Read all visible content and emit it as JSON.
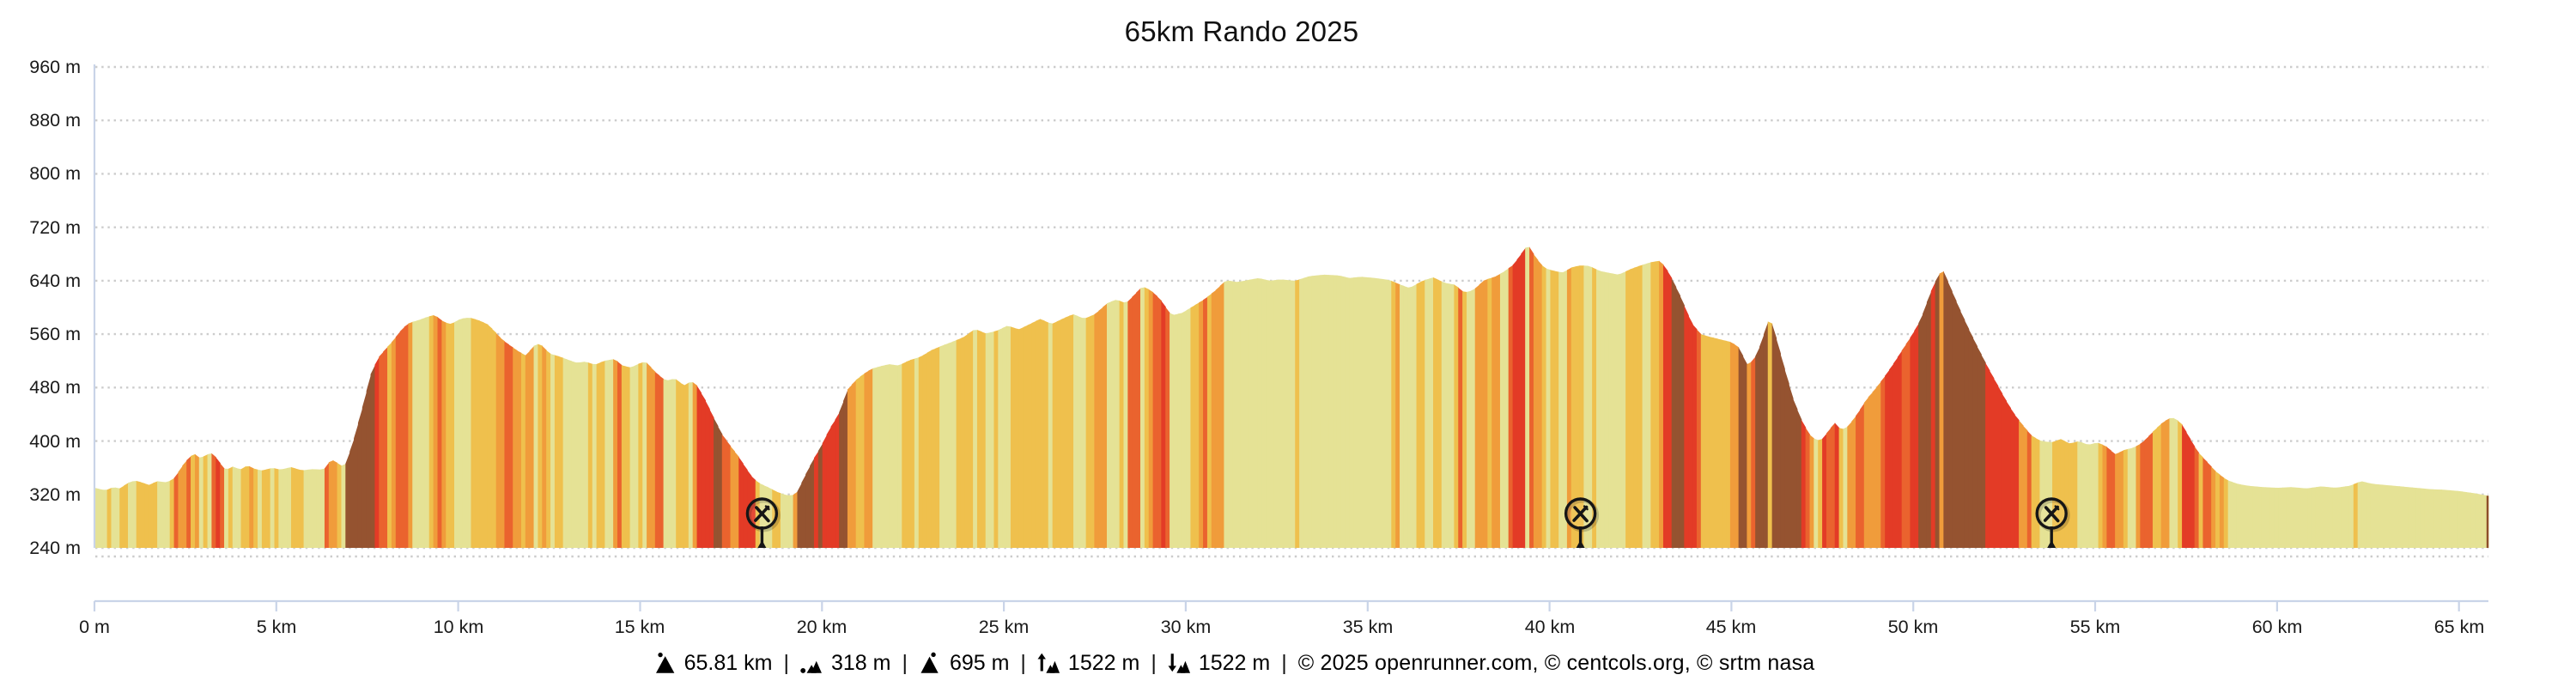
{
  "title": "65km Rando 2025",
  "colors": {
    "background": "#ffffff",
    "axis_line": "#c9d4e8",
    "grid_dots": "#cccccc",
    "label_text": "#1a1a1a",
    "title_text": "#111111",
    "marker_ink": "#161616",
    "profile_end_cap": "#8e4e2b",
    "slope_scale": [
      "#e5e295",
      "#efc04d",
      "#f09c3b",
      "#ea632e",
      "#e33b26",
      "#955330"
    ]
  },
  "chart_data": {
    "type": "area",
    "title": "65km Rando 2025",
    "xlabel": "distance",
    "ylabel": "elevation",
    "x_unit": "km",
    "y_unit": "m",
    "x_range_km": [
      0,
      65.81
    ],
    "ylim_m": [
      240,
      960
    ],
    "grid": "dotted horizontal",
    "legend_position": "none",
    "yticks_m": [
      960,
      880,
      800,
      720,
      640,
      560,
      480,
      400,
      320,
      240
    ],
    "ytick_labels": [
      "960 m",
      "880 m",
      "800 m",
      "720 m",
      "640 m",
      "560 m",
      "480 m",
      "400 m",
      "320 m",
      "240 m"
    ],
    "xticks_km": [
      0,
      5,
      10,
      15,
      20,
      25,
      30,
      35,
      40,
      45,
      50,
      55,
      60,
      65
    ],
    "xtick_labels": [
      "0 m",
      "5 km",
      "10 km",
      "15 km",
      "20 km",
      "25 km",
      "30 km",
      "35 km",
      "40 km",
      "45 km",
      "50 km",
      "55 km",
      "60 km",
      "65 km"
    ],
    "slope_color_encoding": {
      "thresholds_pct": [
        2,
        4,
        6,
        8,
        10.5
      ],
      "classes": [
        "0-2% pale",
        "2-4% gold",
        "4-6% orange",
        "6-8% red-orange",
        "8-10.5% red",
        ">10.5% brown"
      ]
    },
    "markers": [
      {
        "km": 18.35,
        "type": "refreshment",
        "icon": "fork-knife-icon"
      },
      {
        "km": 40.85,
        "type": "refreshment",
        "icon": "fork-knife-icon"
      },
      {
        "km": 53.8,
        "type": "refreshment",
        "icon": "fork-knife-icon"
      }
    ],
    "noise_zones": [
      [
        0,
        2.15,
        2.0
      ],
      [
        2.15,
        3.6,
        2.6
      ],
      [
        3.6,
        6.8,
        2.0
      ],
      [
        6.8,
        10.8,
        2.6
      ],
      [
        10.8,
        16.55,
        2.1
      ],
      [
        16.55,
        19.25,
        2.6
      ],
      [
        19.25,
        21.4,
        2.6
      ],
      [
        21.4,
        28.35,
        1.05
      ],
      [
        28.35,
        31.3,
        2.6
      ],
      [
        31.3,
        35.8,
        0.75
      ],
      [
        35.8,
        38.6,
        2.4
      ],
      [
        38.6,
        44.5,
        2.8
      ],
      [
        44.5,
        45.35,
        1.4
      ],
      [
        45.35,
        47.3,
        2.0
      ],
      [
        47.3,
        48.1,
        1.6
      ],
      [
        48.1,
        50.9,
        2.6
      ],
      [
        50.9,
        53.6,
        2.4
      ],
      [
        53.6,
        56.25,
        2.8
      ],
      [
        56.25,
        58.55,
        2.4
      ],
      [
        58.55,
        61.9,
        0.85
      ],
      [
        61.9,
        62.75,
        2.4
      ],
      [
        62.75,
        65.81,
        0.85
      ]
    ],
    "profile_points_km_m": [
      [
        0,
        330
      ],
      [
        0.3,
        326
      ],
      [
        0.5,
        331
      ],
      [
        0.7,
        329
      ],
      [
        0.9,
        337
      ],
      [
        1.1,
        341
      ],
      [
        1.3,
        338
      ],
      [
        1.5,
        334
      ],
      [
        1.7,
        340
      ],
      [
        2.0,
        338
      ],
      [
        2.2,
        345
      ],
      [
        2.4,
        362
      ],
      [
        2.6,
        376
      ],
      [
        2.75,
        381
      ],
      [
        2.9,
        374
      ],
      [
        3.1,
        380
      ],
      [
        3.25,
        382
      ],
      [
        3.45,
        367
      ],
      [
        3.6,
        356
      ],
      [
        3.8,
        362
      ],
      [
        4.0,
        357
      ],
      [
        4.2,
        364
      ],
      [
        4.4,
        358
      ],
      [
        4.6,
        356
      ],
      [
        4.9,
        360
      ],
      [
        5.1,
        357
      ],
      [
        5.4,
        361
      ],
      [
        5.7,
        356
      ],
      [
        6.0,
        358
      ],
      [
        6.3,
        357
      ],
      [
        6.45,
        369
      ],
      [
        6.6,
        372
      ],
      [
        6.75,
        362
      ],
      [
        6.9,
        366
      ],
      [
        7.1,
        398
      ],
      [
        7.35,
        448
      ],
      [
        7.6,
        502
      ],
      [
        7.8,
        525
      ],
      [
        8.0,
        538
      ],
      [
        8.2,
        550
      ],
      [
        8.45,
        568
      ],
      [
        8.65,
        577
      ],
      [
        8.9,
        581
      ],
      [
        9.1,
        585
      ],
      [
        9.35,
        589
      ],
      [
        9.6,
        578
      ],
      [
        9.8,
        575
      ],
      [
        10.05,
        583
      ],
      [
        10.3,
        585
      ],
      [
        10.55,
        581
      ],
      [
        10.8,
        575
      ],
      [
        11.0,
        564
      ],
      [
        11.2,
        552
      ],
      [
        11.45,
        542
      ],
      [
        11.6,
        536
      ],
      [
        11.85,
        528
      ],
      [
        12.1,
        544
      ],
      [
        12.25,
        546
      ],
      [
        12.5,
        531
      ],
      [
        12.75,
        527
      ],
      [
        13.0,
        522
      ],
      [
        13.25,
        517
      ],
      [
        13.5,
        519
      ],
      [
        13.75,
        514
      ],
      [
        14.0,
        520
      ],
      [
        14.3,
        523
      ],
      [
        14.5,
        513
      ],
      [
        14.75,
        510
      ],
      [
        15.0,
        517
      ],
      [
        15.15,
        519
      ],
      [
        15.4,
        504
      ],
      [
        15.7,
        490
      ],
      [
        15.95,
        494
      ],
      [
        16.2,
        483
      ],
      [
        16.4,
        490
      ],
      [
        16.55,
        484
      ],
      [
        16.8,
        460
      ],
      [
        17.0,
        437
      ],
      [
        17.25,
        410
      ],
      [
        17.5,
        391
      ],
      [
        17.7,
        377
      ],
      [
        17.9,
        360
      ],
      [
        18.1,
        344
      ],
      [
        18.3,
        336
      ],
      [
        18.55,
        330
      ],
      [
        18.75,
        324
      ],
      [
        18.95,
        320
      ],
      [
        19.15,
        318
      ],
      [
        19.3,
        322
      ],
      [
        19.5,
        345
      ],
      [
        19.75,
        372
      ],
      [
        19.95,
        390
      ],
      [
        20.2,
        418
      ],
      [
        20.45,
        440
      ],
      [
        20.7,
        477
      ],
      [
        20.9,
        490
      ],
      [
        21.1,
        499
      ],
      [
        21.35,
        508
      ],
      [
        21.6,
        512
      ],
      [
        21.85,
        515
      ],
      [
        22.1,
        513
      ],
      [
        22.4,
        521
      ],
      [
        22.7,
        526
      ],
      [
        23.0,
        536
      ],
      [
        23.3,
        543
      ],
      [
        23.6,
        549
      ],
      [
        23.9,
        556
      ],
      [
        24.2,
        568
      ],
      [
        24.5,
        561
      ],
      [
        24.8,
        565
      ],
      [
        25.1,
        573
      ],
      [
        25.4,
        567
      ],
      [
        25.7,
        575
      ],
      [
        26.0,
        583
      ],
      [
        26.3,
        575
      ],
      [
        26.6,
        583
      ],
      [
        26.9,
        590
      ],
      [
        27.2,
        583
      ],
      [
        27.5,
        590
      ],
      [
        27.85,
        607
      ],
      [
        28.1,
        612
      ],
      [
        28.35,
        606
      ],
      [
        28.6,
        620
      ],
      [
        28.8,
        632
      ],
      [
        29.05,
        625
      ],
      [
        29.3,
        612
      ],
      [
        29.6,
        588
      ],
      [
        29.9,
        592
      ],
      [
        30.2,
        602
      ],
      [
        30.5,
        612
      ],
      [
        30.8,
        625
      ],
      [
        31.1,
        641
      ],
      [
        31.4,
        638
      ],
      [
        31.7,
        641
      ],
      [
        32.0,
        644
      ],
      [
        32.3,
        640
      ],
      [
        32.6,
        642
      ],
      [
        33.0,
        640
      ],
      [
        33.4,
        647
      ],
      [
        33.8,
        649
      ],
      [
        34.2,
        648
      ],
      [
        34.5,
        644
      ],
      [
        34.8,
        646
      ],
      [
        35.2,
        644
      ],
      [
        35.6,
        641
      ],
      [
        35.9,
        634
      ],
      [
        36.15,
        629
      ],
      [
        36.5,
        640
      ],
      [
        36.8,
        645
      ],
      [
        37.1,
        637
      ],
      [
        37.4,
        634
      ],
      [
        37.65,
        622
      ],
      [
        37.9,
        626
      ],
      [
        38.2,
        641
      ],
      [
        38.5,
        646
      ],
      [
        38.75,
        654
      ],
      [
        39.0,
        664
      ],
      [
        39.2,
        679
      ],
      [
        39.4,
        695
      ],
      [
        39.6,
        676
      ],
      [
        39.85,
        659
      ],
      [
        40.1,
        655
      ],
      [
        40.35,
        652
      ],
      [
        40.6,
        660
      ],
      [
        40.85,
        663
      ],
      [
        41.1,
        662
      ],
      [
        41.35,
        655
      ],
      [
        41.6,
        652
      ],
      [
        41.9,
        649
      ],
      [
        42.2,
        657
      ],
      [
        42.5,
        663
      ],
      [
        42.8,
        668
      ],
      [
        43.05,
        670
      ],
      [
        43.3,
        650
      ],
      [
        43.6,
        616
      ],
      [
        43.9,
        577
      ],
      [
        44.15,
        560
      ],
      [
        44.4,
        556
      ],
      [
        44.7,
        552
      ],
      [
        45.0,
        548
      ],
      [
        45.2,
        540
      ],
      [
        45.45,
        512
      ],
      [
        45.7,
        530
      ],
      [
        45.95,
        570
      ],
      [
        46.05,
        588
      ],
      [
        46.2,
        560
      ],
      [
        46.45,
        510
      ],
      [
        46.7,
        462
      ],
      [
        46.95,
        428
      ],
      [
        47.2,
        405
      ],
      [
        47.45,
        400
      ],
      [
        47.7,
        418
      ],
      [
        47.85,
        428
      ],
      [
        48.0,
        416
      ],
      [
        48.2,
        422
      ],
      [
        48.45,
        440
      ],
      [
        48.7,
        462
      ],
      [
        48.95,
        478
      ],
      [
        49.2,
        496
      ],
      [
        49.45,
        516
      ],
      [
        49.7,
        537
      ],
      [
        49.95,
        558
      ],
      [
        50.2,
        582
      ],
      [
        50.45,
        620
      ],
      [
        50.65,
        645
      ],
      [
        50.8,
        658
      ],
      [
        51.0,
        632
      ],
      [
        51.25,
        600
      ],
      [
        51.5,
        570
      ],
      [
        51.75,
        542
      ],
      [
        52.0,
        515
      ],
      [
        52.25,
        490
      ],
      [
        52.5,
        465
      ],
      [
        52.75,
        442
      ],
      [
        53.0,
        424
      ],
      [
        53.25,
        408
      ],
      [
        53.5,
        400
      ],
      [
        53.8,
        398
      ],
      [
        54.05,
        403
      ],
      [
        54.3,
        396
      ],
      [
        54.55,
        400
      ],
      [
        54.8,
        394
      ],
      [
        55.05,
        398
      ],
      [
        55.3,
        392
      ],
      [
        55.55,
        380
      ],
      [
        55.8,
        387
      ],
      [
        56.05,
        390
      ],
      [
        56.3,
        398
      ],
      [
        56.6,
        415
      ],
      [
        56.85,
        428
      ],
      [
        57.1,
        436
      ],
      [
        57.35,
        428
      ],
      [
        57.6,
        404
      ],
      [
        57.8,
        385
      ],
      [
        58.0,
        373
      ],
      [
        58.3,
        355
      ],
      [
        58.6,
        342
      ],
      [
        58.9,
        336
      ],
      [
        59.2,
        333
      ],
      [
        59.6,
        331
      ],
      [
        60.0,
        330
      ],
      [
        60.4,
        331
      ],
      [
        60.8,
        329
      ],
      [
        61.2,
        332
      ],
      [
        61.6,
        330
      ],
      [
        62.0,
        333
      ],
      [
        62.3,
        340
      ],
      [
        62.6,
        336
      ],
      [
        63.0,
        334
      ],
      [
        63.4,
        332
      ],
      [
        63.8,
        330
      ],
      [
        64.2,
        328
      ],
      [
        64.6,
        327
      ],
      [
        65.0,
        325
      ],
      [
        65.4,
        322
      ],
      [
        65.81,
        318
      ]
    ]
  },
  "footer": {
    "separator": "|",
    "items": [
      {
        "icon": "distance-mountain-icon",
        "value": "65.81 km"
      },
      {
        "icon": "min-elevation-icon",
        "value": "318 m"
      },
      {
        "icon": "max-elevation-icon",
        "value": "695 m"
      },
      {
        "icon": "ascent-icon",
        "value": "1522 m"
      },
      {
        "icon": "descent-icon",
        "value": "1522 m"
      }
    ],
    "credits": "© 2025 openrunner.com, © centcols.org, © srtm nasa"
  }
}
